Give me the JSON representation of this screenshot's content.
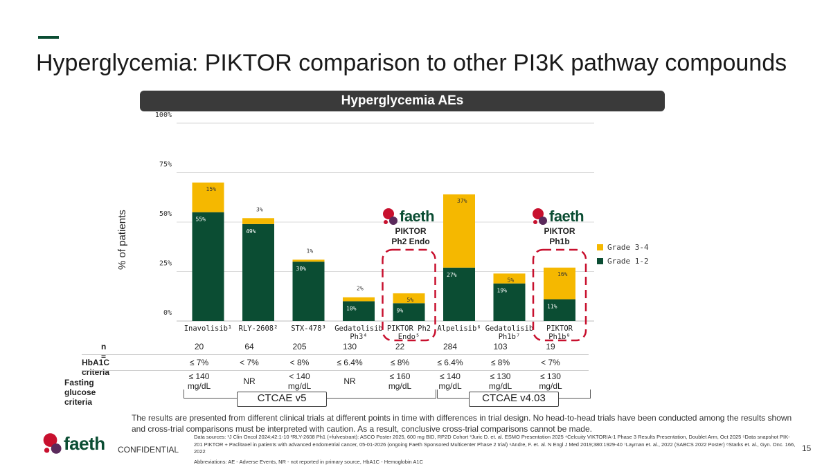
{
  "title": "Hyperglycemia: PIKTOR comparison to other PI3K pathway compounds",
  "chart_header": "Hyperglycemia AEs",
  "chart_data": {
    "type": "bar",
    "stacked": true,
    "categories": [
      "Inavolisib¹",
      "RLY-2608²",
      "STX-478³",
      "Gedatolisib Ph3⁴",
      "PIKTOR Ph2 Endo⁵",
      "Alpelisib⁶",
      "Gedatolisib Ph1b⁷",
      "PIKTOR Ph1b⁸"
    ],
    "series": [
      {
        "name": "Grade 1-2",
        "values": [
          55,
          49,
          30,
          10,
          9,
          27,
          19,
          11
        ],
        "labels": [
          "55%",
          "49%",
          "30%",
          "10%",
          "9%",
          "27%",
          "19%",
          "11%"
        ]
      },
      {
        "name": "Grade 3-4",
        "values": [
          15,
          3,
          1,
          2,
          5,
          37,
          5,
          16
        ],
        "labels": [
          "15%",
          "3%",
          "1%",
          "2%",
          "5%",
          "37%",
          "5%",
          "16%"
        ]
      }
    ],
    "yticks": [
      "0%",
      "25%",
      "50%",
      "75%",
      "100%"
    ],
    "ylim": [
      0,
      100
    ],
    "ylabel": "% of patients",
    "legend_position": "right",
    "grid": true,
    "highlighted_categories": [
      4,
      7
    ]
  },
  "colors": {
    "grade_1_2": "#0b4d33",
    "grade_3_4": "#f5b800",
    "accent": "#0b4d33",
    "logo_red": "#c8102e",
    "logo_purple": "#5b2a5c",
    "highlight_dash": "#c8102e"
  },
  "annotations": [
    {
      "brand": "faeth",
      "label_line1": "PIKTOR",
      "label_line2": "Ph2 Endo"
    },
    {
      "brand": "faeth",
      "label_line1": "PIKTOR",
      "label_line2": "Ph1b"
    }
  ],
  "table": {
    "n_label": "n =",
    "n_values": [
      "20",
      "64",
      "205",
      "130",
      "22",
      "284",
      "103",
      "19"
    ],
    "hba1c_label": "HbA1C criteria",
    "hba1c_values": [
      "≤ 7%",
      "< 7%",
      "< 8%",
      "≤ 6.4%",
      "≤ 8%",
      "≤ 6.4%",
      "≤ 8%",
      "< 7%"
    ],
    "glucose_label": "Fasting glucose criteria",
    "glucose_values": [
      {
        "line1": "≤ 140",
        "line2": "mg/dL"
      },
      {
        "line1": "NR",
        "line2": ""
      },
      {
        "line1": "< 140",
        "line2": "mg/dL"
      },
      {
        "line1": "NR",
        "line2": ""
      },
      {
        "line1": "≤ 160",
        "line2": "mg/dL"
      },
      {
        "line1": "≤ 140",
        "line2": "mg/dL"
      },
      {
        "line1": "≤ 130",
        "line2": "mg/dL"
      },
      {
        "line1": "≤ 130",
        "line2": "mg/dL"
      }
    ],
    "ctcae_v5": "CTCAE v5",
    "ctcae_v403": "CTCAE v4.03"
  },
  "disclaimer": "The results are presented from different clinical trials at different points in time with differences in trial design. No head-to-head trials have been conducted among the results shown and cross-trial comparisons must be interpreted with caution. As a result, conclusive cross-trial comparisons cannot be made.",
  "sources": "Data sources: ¹J Clin Oncol 2024;42:1-10 ²RLY-2608 Ph1 (+fulvestrant): ASCO Poster 2025, 600 mg BID, RP2D Cohort ³Juric D. et. al. ESMO Presentation 2025 ⁴Celcuity VIKTORIA-1 Phase 3 Results Presentation, Doublet Arm, Oct 2025 ⁵Data snapshot PIK-201 PIKTOR + Paclitaxel in patients with advanced endometrial cancer, 05-01-2026 (ongoing Faeth Sponsored Multicenter Phase 2 trial) ⁶Andre, F. et. al. N Engl J Med 2019;380:1929-40 ⁷Layman et. al., 2022 (SABCS 2022 Poster) ⁸Starks et. al., Gyn. Onc. 166, 2022",
  "abbreviations": "Abbreviations: AE - Adverse Events, NR - not reported in primary source, HbA1C - Hemoglobin A1C",
  "footer": {
    "brand": "faeth",
    "confidential": "CONFIDENTIAL",
    "page_number": "15"
  }
}
